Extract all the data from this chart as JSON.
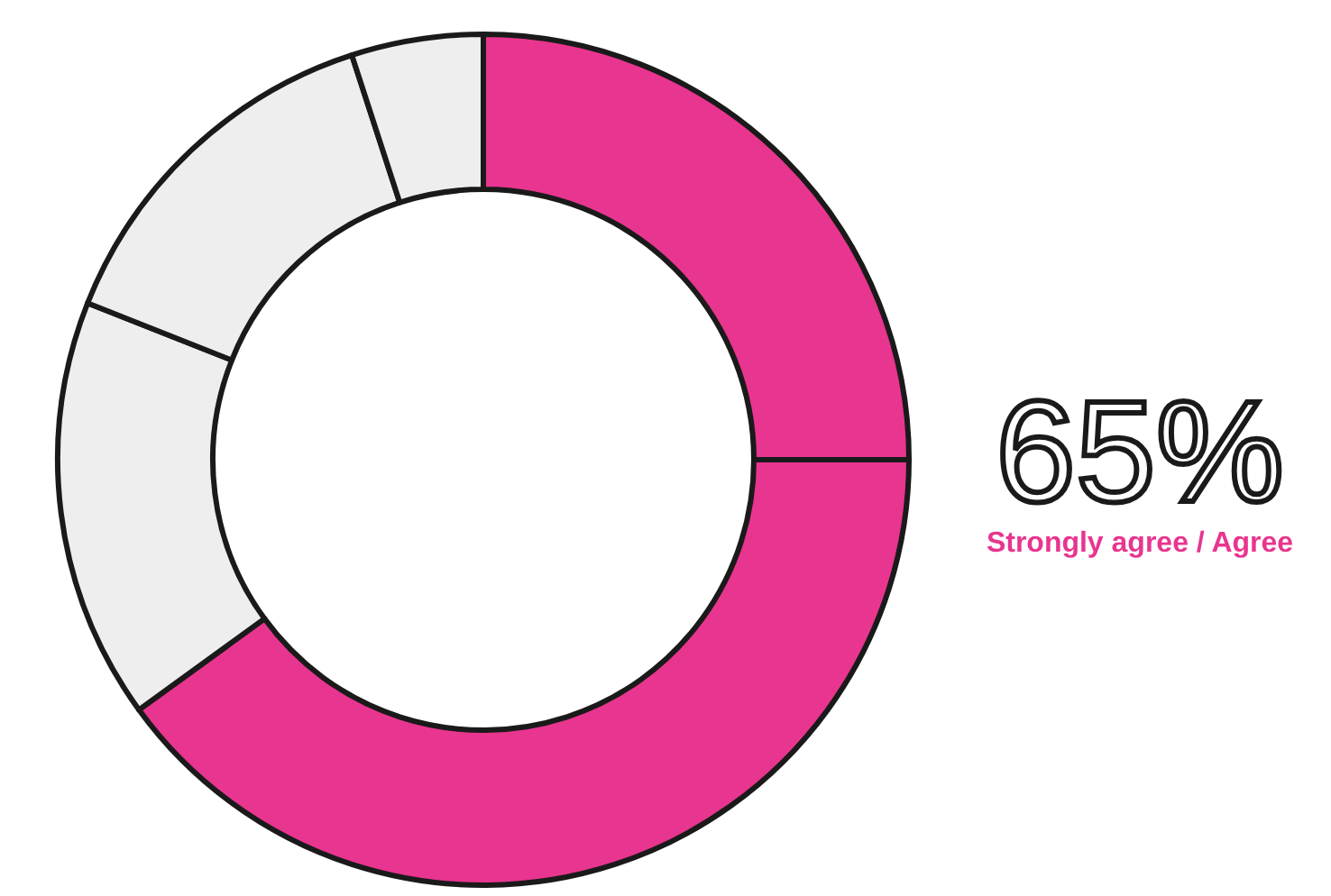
{
  "chart_data": {
    "type": "donut",
    "categories": [
      null,
      null,
      null,
      null,
      null
    ],
    "values": [
      25,
      40,
      16,
      14,
      5
    ],
    "colors": [
      "#e8358f",
      "#e8358f",
      "#eeeeee",
      "#eeeeee",
      "#eeeeee"
    ],
    "annotations": [
      "65%",
      "Strongly agree / Agree"
    ]
  }
}
